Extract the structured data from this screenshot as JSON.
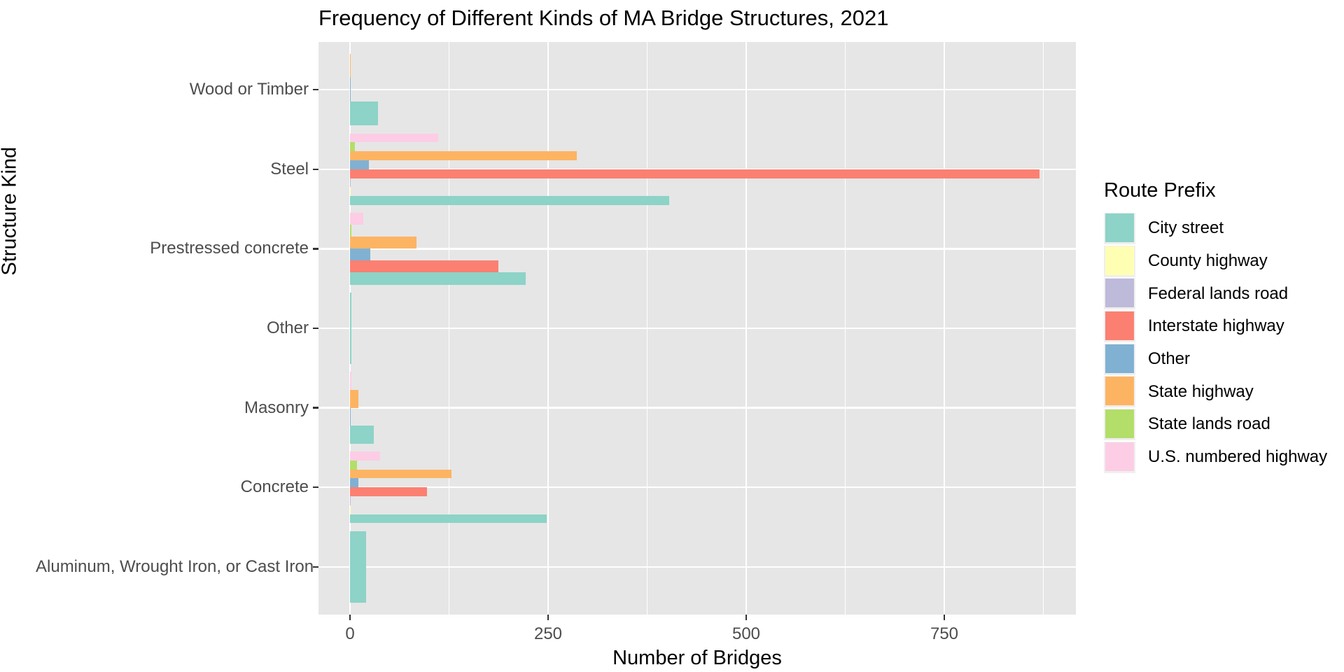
{
  "chart_data": {
    "type": "bar",
    "orientation": "horizontal",
    "title": "Frequency of Different Kinds of MA Bridge Structures, 2021",
    "xlabel": "Number of Bridges",
    "ylabel": "Structure Kind",
    "legend_title": "Route Prefix",
    "legend_position": "right",
    "grid": "white major and minor vertical gridlines plus white horizontal lines at each category center on gray panel",
    "xlim": [
      -44,
      916
    ],
    "x_ticks": [
      0,
      250,
      500,
      750
    ],
    "x_tick_labels": [
      "0",
      "250",
      "500",
      "750"
    ],
    "x_minor_ticks": [
      125,
      375,
      625,
      875
    ],
    "categories": [
      "Wood or Timber",
      "Steel",
      "Prestressed concrete",
      "Other",
      "Masonry",
      "Concrete",
      "Aluminum, Wrought Iron, or Cast Iron"
    ],
    "series_legend": [
      {
        "name": "City street",
        "color": "#8DD3C7"
      },
      {
        "name": "County highway",
        "color": "#FFFFB3"
      },
      {
        "name": "Federal lands road",
        "color": "#BEBADA"
      },
      {
        "name": "Interstate highway",
        "color": "#FB8072"
      },
      {
        "name": "Other",
        "color": "#80B1D3"
      },
      {
        "name": "State highway",
        "color": "#FDB462"
      },
      {
        "name": "State lands road",
        "color": "#B3DE69"
      },
      {
        "name": "U.S. numbered highway",
        "color": "#FCCDE5"
      }
    ],
    "groups": [
      {
        "category": "Wood or Timber",
        "bars": [
          {
            "series": "State highway",
            "value": 1
          },
          {
            "series": "Other",
            "value": 1
          },
          {
            "series": "City street",
            "value": 35
          }
        ]
      },
      {
        "category": "Steel",
        "bars": [
          {
            "series": "U.S. numbered highway",
            "value": 111
          },
          {
            "series": "State lands road",
            "value": 6
          },
          {
            "series": "State highway",
            "value": 286
          },
          {
            "series": "Other",
            "value": 24
          },
          {
            "series": "Interstate highway",
            "value": 870
          },
          {
            "series": "Federal lands road",
            "value": 1
          },
          {
            "series": "County highway",
            "value": 1
          },
          {
            "series": "City street",
            "value": 403
          }
        ]
      },
      {
        "category": "Prestressed concrete",
        "bars": [
          {
            "series": "U.S. numbered highway",
            "value": 17
          },
          {
            "series": "State lands road",
            "value": 2
          },
          {
            "series": "State highway",
            "value": 84
          },
          {
            "series": "Other",
            "value": 26
          },
          {
            "series": "Interstate highway",
            "value": 187
          },
          {
            "series": "City street",
            "value": 222
          }
        ]
      },
      {
        "category": "Other",
        "bars": [
          {
            "series": "City street",
            "value": 2
          }
        ]
      },
      {
        "category": "Masonry",
        "bars": [
          {
            "series": "U.S. numbered highway",
            "value": 2
          },
          {
            "series": "State highway",
            "value": 11
          },
          {
            "series": "Other",
            "value": 1
          },
          {
            "series": "City street",
            "value": 30
          }
        ]
      },
      {
        "category": "Concrete",
        "bars": [
          {
            "series": "U.S. numbered highway",
            "value": 38
          },
          {
            "series": "State lands road",
            "value": 9
          },
          {
            "series": "State highway",
            "value": 128
          },
          {
            "series": "Other",
            "value": 11
          },
          {
            "series": "Interstate highway",
            "value": 97
          },
          {
            "series": "Federal lands road",
            "value": 1
          },
          {
            "series": "County highway",
            "value": 1
          },
          {
            "series": "City street",
            "value": 248
          }
        ]
      },
      {
        "category": "Aluminum, Wrought Iron, or Cast Iron",
        "bars": [
          {
            "series": "City street",
            "value": 20
          }
        ]
      }
    ],
    "colors": {
      "panel_background": "#E6E6E6",
      "gridline": "#FFFFFF",
      "axis_text": "#4D4D4D",
      "title_text": "#000000"
    }
  }
}
